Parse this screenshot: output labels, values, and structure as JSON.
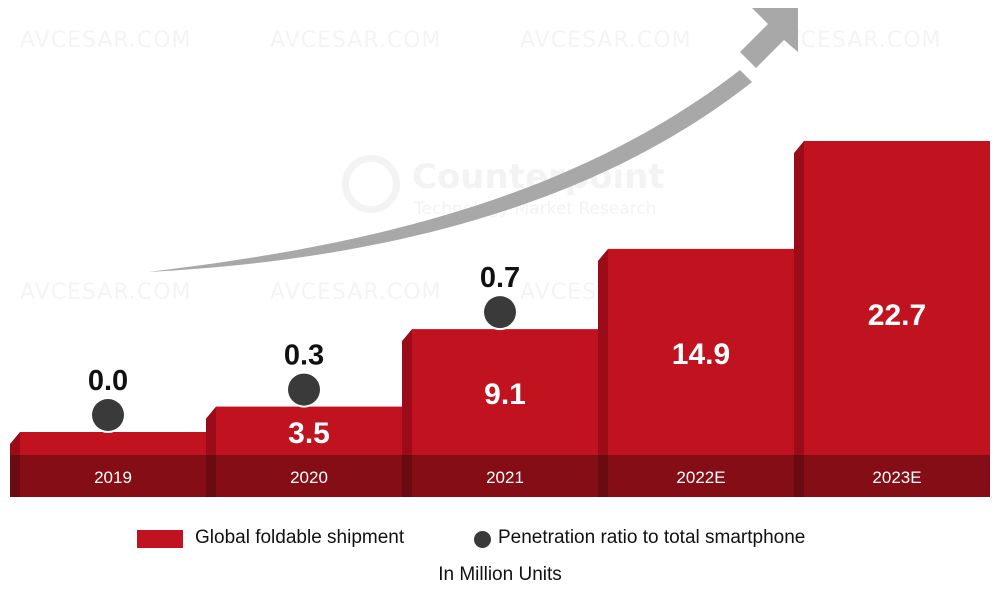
{
  "chart_data": {
    "type": "bar",
    "title": "",
    "xlabel": "",
    "ylabel": "",
    "units_note": "In Million Units",
    "categories": [
      "2019",
      "2020",
      "2021",
      "2022E",
      "2023E"
    ],
    "series": [
      {
        "name": "Global foldable shipment",
        "kind": "bar",
        "color": "#c0121f",
        "values": [
          1.0,
          3.5,
          9.1,
          14.9,
          22.7
        ],
        "labels": [
          "",
          "3.5",
          "9.1",
          "14.9",
          "22.7"
        ]
      },
      {
        "name": "Penetration ratio to total smartphone",
        "kind": "dot",
        "color": "#3a3a3a",
        "values": [
          0.0,
          0.3,
          0.7,
          null,
          null
        ],
        "labels": [
          "0.0",
          "0.3",
          "0.7",
          "",
          ""
        ]
      }
    ],
    "ylim": [
      0,
      25
    ],
    "grid": false,
    "legend": "bottom-center",
    "annotations": [
      "upward growth arrow"
    ]
  },
  "legend": {
    "bar_label": "Global foldable shipment",
    "dot_label": "Penetration ratio to total smartphone"
  },
  "units": "In Million Units",
  "watermarks": {
    "site": "AVCESAR.COM",
    "brand_name": "Counterpoint",
    "brand_sub": "Technology Market Research"
  },
  "colors": {
    "bar_front": "#c0121f",
    "bar_side": "#9c0c18",
    "band": "#850d16",
    "band_side": "#6a0a11",
    "dot": "#3a3a3a",
    "arrow": "#a8a8a8"
  }
}
